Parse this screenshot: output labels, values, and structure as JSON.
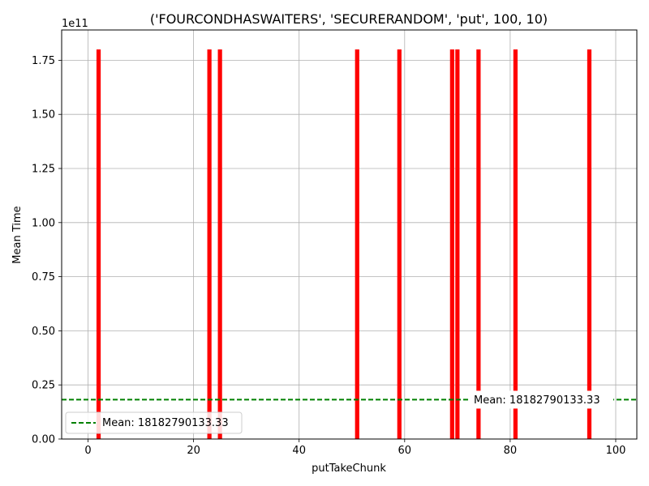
{
  "chart_data": {
    "type": "bar",
    "title": "('FOURCONDHASWAITERS', 'SECURERANDOM', 'put', 100, 10)",
    "xlabel": "putTakeChunk",
    "ylabel": "Mean Time",
    "y_offset_text": "1e11",
    "xlim": [
      -5,
      104
    ],
    "ylim": [
      0,
      189000000000.0
    ],
    "x_ticks": [
      0,
      20,
      40,
      60,
      80,
      100
    ],
    "x_tick_labels": [
      "0",
      "20",
      "40",
      "60",
      "80",
      "100"
    ],
    "y_ticks": [
      0,
      25000000000.0,
      50000000000.0,
      75000000000.0,
      100000000000.0,
      125000000000.0,
      150000000000.0,
      175000000000.0
    ],
    "y_tick_labels": [
      "0.00",
      "0.25",
      "0.50",
      "0.75",
      "1.00",
      "1.25",
      "1.50",
      "1.75"
    ],
    "grid": true,
    "bar_color": "#ff0000",
    "series": [
      {
        "x": [
          2,
          23,
          25,
          51,
          59,
          69,
          70,
          74,
          81,
          95
        ],
        "values": [
          180000000000.0,
          180000000000.0,
          180000000000.0,
          180000000000.0,
          180000000000.0,
          180000000000.0,
          180000000000.0,
          180000000000.0,
          180000000000.0,
          180000000000.0
        ]
      }
    ],
    "mean_line": {
      "value": 18182790133.33,
      "label": "Mean: 18182790133.33",
      "color": "#008000",
      "style": "dashed"
    },
    "legend": {
      "placement": "lower-left",
      "entries": [
        "Mean: 18182790133.33"
      ]
    }
  }
}
